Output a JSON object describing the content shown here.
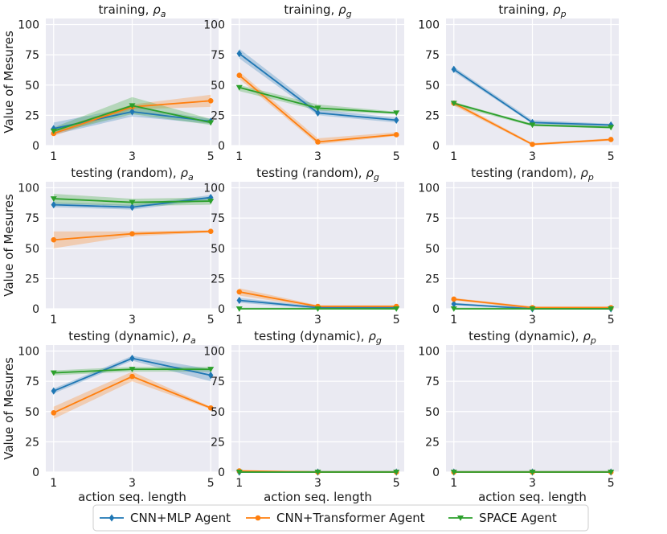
{
  "figure": {
    "ylabel": "Value of Mesures",
    "xlabel": "action seq. length",
    "legend": [
      "CNN+MLP Agent",
      "CNN+Transformer Agent",
      "SPACE Agent"
    ]
  },
  "colors": {
    "mlp": "#1f77b4",
    "transformer": "#ff7f0e",
    "space": "#2ca02c",
    "panel_bg": "#eaeaf2",
    "grid": "#ffffff"
  },
  "chart_data": [
    {
      "type": "line",
      "title_prefix": "training, ",
      "metric_sym": "ρ",
      "metric_sub": "a",
      "categories": [
        1,
        3,
        5
      ],
      "ylim": [
        0,
        105
      ],
      "yticks": [
        0,
        25,
        50,
        75,
        100
      ],
      "series": [
        {
          "name": "CNN+MLP Agent",
          "values": [
            14,
            28,
            20
          ],
          "lower": [
            9,
            24,
            18
          ],
          "upper": [
            19,
            32,
            22
          ]
        },
        {
          "name": "CNN+Transformer Agent",
          "values": [
            10,
            32,
            37
          ],
          "lower": [
            8,
            30,
            32
          ],
          "upper": [
            13,
            34,
            42
          ]
        },
        {
          "name": "SPACE Agent",
          "values": [
            12,
            33,
            19
          ],
          "lower": [
            10,
            26,
            17
          ],
          "upper": [
            15,
            40,
            22
          ]
        }
      ]
    },
    {
      "type": "line",
      "title_prefix": "training, ",
      "metric_sym": "ρ",
      "metric_sub": "g",
      "categories": [
        1,
        3,
        5
      ],
      "ylim": [
        0,
        105
      ],
      "yticks": [
        0,
        25,
        50,
        75,
        100
      ],
      "series": [
        {
          "name": "CNN+MLP Agent",
          "values": [
            76,
            27,
            21
          ],
          "lower": [
            72,
            25,
            19
          ],
          "upper": [
            80,
            30,
            23
          ]
        },
        {
          "name": "CNN+Transformer Agent",
          "values": [
            58,
            3,
            9
          ],
          "lower": [
            55,
            1,
            8
          ],
          "upper": [
            61,
            6,
            11
          ]
        },
        {
          "name": "SPACE Agent",
          "values": [
            48,
            31,
            27
          ],
          "lower": [
            45,
            29,
            26
          ],
          "upper": [
            50,
            34,
            28
          ]
        }
      ]
    },
    {
      "type": "line",
      "title_prefix": "training, ",
      "metric_sym": "ρ",
      "metric_sub": "p",
      "categories": [
        1,
        3,
        5
      ],
      "ylim": [
        0,
        105
      ],
      "yticks": [
        0,
        25,
        50,
        75,
        100
      ],
      "series": [
        {
          "name": "CNN+MLP Agent",
          "values": [
            63,
            19,
            17
          ],
          "lower": [
            61,
            18,
            16
          ],
          "upper": [
            65,
            21,
            18
          ]
        },
        {
          "name": "CNN+Transformer Agent",
          "values": [
            35,
            1,
            5
          ],
          "lower": [
            33,
            0,
            4
          ],
          "upper": [
            37,
            2,
            6
          ]
        },
        {
          "name": "SPACE Agent",
          "values": [
            35,
            17,
            15
          ],
          "lower": [
            33,
            16,
            14
          ],
          "upper": [
            36,
            18,
            16
          ]
        }
      ]
    },
    {
      "type": "line",
      "title_prefix": "testing (random), ",
      "metric_sym": "ρ",
      "metric_sub": "a",
      "categories": [
        1,
        3,
        5
      ],
      "ylim": [
        0,
        105
      ],
      "yticks": [
        0,
        25,
        50,
        75,
        100
      ],
      "series": [
        {
          "name": "CNN+MLP Agent",
          "values": [
            86,
            84,
            92
          ],
          "lower": [
            84,
            82,
            90
          ],
          "upper": [
            88,
            86,
            94
          ]
        },
        {
          "name": "CNN+Transformer Agent",
          "values": [
            57,
            62,
            64
          ],
          "lower": [
            50,
            60,
            63
          ],
          "upper": [
            64,
            64,
            65
          ]
        },
        {
          "name": "SPACE Agent",
          "values": [
            91,
            88,
            89
          ],
          "lower": [
            87,
            85,
            86
          ],
          "upper": [
            95,
            91,
            92
          ]
        }
      ]
    },
    {
      "type": "line",
      "title_prefix": "testing (random), ",
      "metric_sym": "ρ",
      "metric_sub": "g",
      "categories": [
        1,
        3,
        5
      ],
      "ylim": [
        0,
        105
      ],
      "yticks": [
        0,
        25,
        50,
        75,
        100
      ],
      "series": [
        {
          "name": "CNN+MLP Agent",
          "values": [
            7,
            1,
            1
          ],
          "lower": [
            5,
            0,
            0
          ],
          "upper": [
            9,
            2,
            2
          ]
        },
        {
          "name": "CNN+Transformer Agent",
          "values": [
            14,
            2,
            2
          ],
          "lower": [
            11,
            1,
            1
          ],
          "upper": [
            17,
            3,
            3
          ]
        },
        {
          "name": "SPACE Agent",
          "values": [
            0,
            0,
            0
          ],
          "lower": [
            0,
            0,
            0
          ],
          "upper": [
            1,
            1,
            1
          ]
        }
      ]
    },
    {
      "type": "line",
      "title_prefix": "testing (random), ",
      "metric_sym": "ρ",
      "metric_sub": "p",
      "categories": [
        1,
        3,
        5
      ],
      "ylim": [
        0,
        105
      ],
      "yticks": [
        0,
        25,
        50,
        75,
        100
      ],
      "series": [
        {
          "name": "CNN+MLP Agent",
          "values": [
            4,
            0,
            0
          ],
          "lower": [
            3,
            0,
            0
          ],
          "upper": [
            5,
            1,
            1
          ]
        },
        {
          "name": "CNN+Transformer Agent",
          "values": [
            8,
            1,
            1
          ],
          "lower": [
            7,
            0,
            0
          ],
          "upper": [
            9,
            2,
            2
          ]
        },
        {
          "name": "SPACE Agent",
          "values": [
            0,
            0,
            0
          ],
          "lower": [
            0,
            0,
            0
          ],
          "upper": [
            1,
            1,
            1
          ]
        }
      ]
    },
    {
      "type": "line",
      "title_prefix": "testing (dynamic), ",
      "metric_sym": "ρ",
      "metric_sub": "a",
      "categories": [
        1,
        3,
        5
      ],
      "ylim": [
        0,
        105
      ],
      "yticks": [
        0,
        25,
        50,
        75,
        100
      ],
      "series": [
        {
          "name": "CNN+MLP Agent",
          "values": [
            67,
            94,
            80
          ],
          "lower": [
            65,
            92,
            75
          ],
          "upper": [
            69,
            96,
            85
          ]
        },
        {
          "name": "CNN+Transformer Agent",
          "values": [
            49,
            79,
            53
          ],
          "lower": [
            44,
            75,
            52
          ],
          "upper": [
            54,
            83,
            54
          ]
        },
        {
          "name": "SPACE Agent",
          "values": [
            82,
            85,
            85
          ],
          "lower": [
            80,
            83,
            83
          ],
          "upper": [
            84,
            87,
            87
          ]
        }
      ]
    },
    {
      "type": "line",
      "title_prefix": "testing (dynamic), ",
      "metric_sym": "ρ",
      "metric_sub": "g",
      "categories": [
        1,
        3,
        5
      ],
      "ylim": [
        0,
        105
      ],
      "yticks": [
        0,
        25,
        50,
        75,
        100
      ],
      "series": [
        {
          "name": "CNN+MLP Agent",
          "values": [
            0,
            0,
            0
          ],
          "lower": [
            0,
            0,
            0
          ],
          "upper": [
            1,
            1,
            1
          ]
        },
        {
          "name": "CNN+Transformer Agent",
          "values": [
            1,
            0,
            0
          ],
          "lower": [
            0,
            0,
            0
          ],
          "upper": [
            1,
            1,
            1
          ]
        },
        {
          "name": "SPACE Agent",
          "values": [
            0,
            0,
            0
          ],
          "lower": [
            0,
            0,
            0
          ],
          "upper": [
            1,
            1,
            1
          ]
        }
      ]
    },
    {
      "type": "line",
      "title_prefix": "testing (dynamic), ",
      "metric_sym": "ρ",
      "metric_sub": "p",
      "categories": [
        1,
        3,
        5
      ],
      "ylim": [
        0,
        105
      ],
      "yticks": [
        0,
        25,
        50,
        75,
        100
      ],
      "series": [
        {
          "name": "CNN+MLP Agent",
          "values": [
            0,
            0,
            0
          ],
          "lower": [
            0,
            0,
            0
          ],
          "upper": [
            1,
            1,
            1
          ]
        },
        {
          "name": "CNN+Transformer Agent",
          "values": [
            0,
            0,
            0
          ],
          "lower": [
            0,
            0,
            0
          ],
          "upper": [
            1,
            1,
            1
          ]
        },
        {
          "name": "SPACE Agent",
          "values": [
            0,
            0,
            0
          ],
          "lower": [
            0,
            0,
            0
          ],
          "upper": [
            1,
            1,
            1
          ]
        }
      ]
    }
  ]
}
